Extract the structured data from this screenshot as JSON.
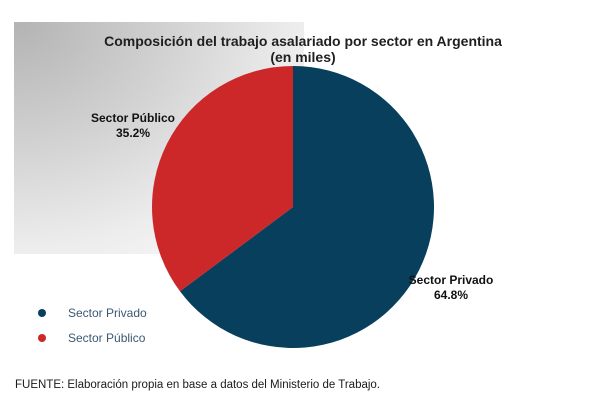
{
  "chart_data": {
    "type": "pie",
    "title": "Composición del trabajo asalariado por sector en Argentina",
    "subtitle": "(en miles)",
    "slices": [
      {
        "label": "Sector Privado",
        "value": 64.8,
        "value_label": "64.8%",
        "color": "#073f5c"
      },
      {
        "label": "Sector Público",
        "value": 35.2,
        "value_label": "35.2%",
        "color": "#cc2729"
      }
    ],
    "legend": {
      "position": "bottom-left",
      "items": [
        {
          "label": "Sector Privado",
          "color": "#073f5c"
        },
        {
          "label": "Sector Público",
          "color": "#cc2729"
        }
      ]
    }
  },
  "footer": {
    "source": "FUENTE: Elaboración propia en base a datos del Ministerio de Trabajo."
  }
}
